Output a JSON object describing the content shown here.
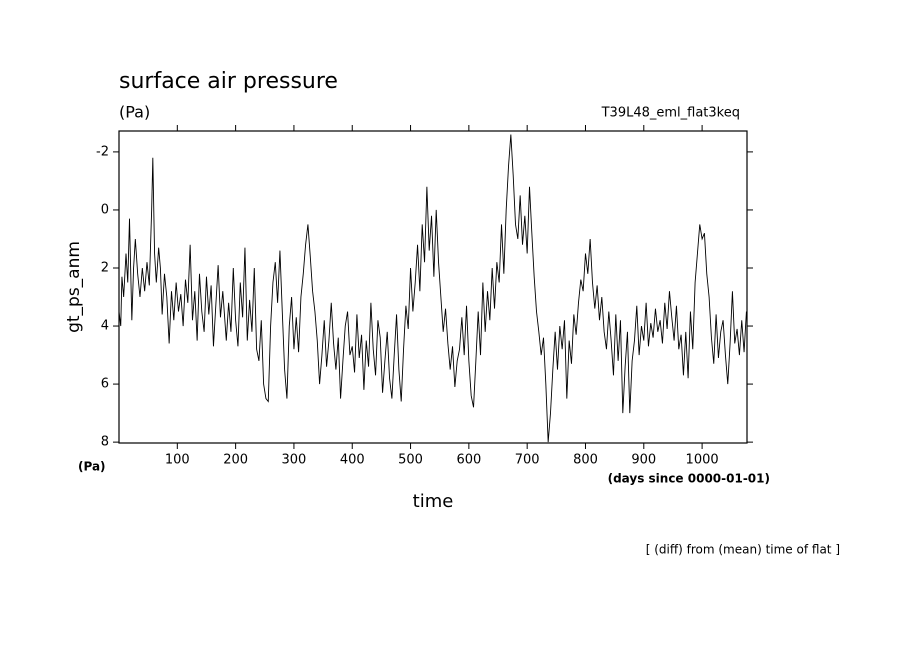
{
  "chart_data": {
    "type": "line",
    "title": "surface air pressure",
    "subtitle": "(Pa)",
    "annotation": "T39L48_eml_flat3keq",
    "y_label": "gt_ps_anm",
    "y_units": "(Pa)",
    "x_label": "time",
    "x_units": "(days since 0000-01-01)",
    "footer": "[ (diff) from (mean) time of flat ]",
    "xlim": [
      0,
      1077
    ],
    "ylim": [
      8.03,
      -2.72
    ],
    "xticks": [
      100,
      200,
      300,
      400,
      500,
      600,
      700,
      800,
      900,
      1000
    ],
    "yticks": [
      -2,
      0,
      2,
      4,
      6,
      8
    ],
    "color": "#000000",
    "x": [
      0,
      3,
      5,
      8,
      12,
      15,
      18,
      22,
      25,
      28,
      32,
      36,
      40,
      44,
      48,
      52,
      56,
      58,
      61,
      64,
      68,
      71,
      74,
      78,
      82,
      86,
      90,
      94,
      98,
      102,
      106,
      110,
      114,
      118,
      122,
      126,
      130,
      134,
      138,
      142,
      146,
      150,
      154,
      158,
      162,
      166,
      170,
      174,
      178,
      184,
      188,
      192,
      196,
      200,
      204,
      208,
      212,
      216,
      220,
      224,
      228,
      232,
      236,
      240,
      244,
      248,
      252,
      256,
      260,
      264,
      268,
      272,
      276,
      280,
      284,
      288,
      292,
      296,
      300,
      304,
      308,
      312,
      316,
      320,
      324,
      328,
      332,
      336,
      340,
      344,
      348,
      352,
      356,
      360,
      364,
      368,
      372,
      376,
      380,
      384,
      388,
      392,
      396,
      400,
      404,
      408,
      412,
      416,
      420,
      424,
      428,
      432,
      436,
      440,
      444,
      448,
      452,
      456,
      460,
      464,
      468,
      472,
      476,
      480,
      484,
      488,
      492,
      496,
      500,
      504,
      508,
      512,
      516,
      520,
      524,
      528,
      532,
      536,
      540,
      544,
      548,
      552,
      556,
      560,
      564,
      568,
      572,
      576,
      580,
      584,
      588,
      592,
      596,
      600,
      604,
      608,
      612,
      616,
      620,
      624,
      628,
      632,
      636,
      640,
      644,
      648,
      652,
      656,
      660,
      664,
      668,
      672,
      676,
      680,
      684,
      688,
      692,
      696,
      700,
      704,
      708,
      712,
      716,
      720,
      724,
      728,
      732,
      736,
      740,
      744,
      748,
      752,
      756,
      760,
      764,
      768,
      772,
      776,
      780,
      784,
      788,
      792,
      796,
      800,
      804,
      808,
      812,
      816,
      820,
      824,
      828,
      832,
      836,
      840,
      844,
      848,
      852,
      856,
      860,
      864,
      868,
      872,
      876,
      880,
      884,
      888,
      892,
      896,
      900,
      904,
      908,
      912,
      916,
      920,
      924,
      928,
      932,
      936,
      940,
      944,
      948,
      952,
      956,
      960,
      964,
      968,
      972,
      976,
      980,
      984,
      988,
      992,
      996,
      1000,
      1004,
      1008,
      1012,
      1016,
      1020,
      1024,
      1028,
      1032,
      1036,
      1040,
      1044,
      1048,
      1052,
      1056,
      1060,
      1064,
      1068,
      1072,
      1076
    ],
    "values": [
      3.5,
      4,
      2.3,
      3,
      1.5,
      2.5,
      0.3,
      3.8,
      2,
      1,
      2.2,
      3,
      2,
      2.8,
      1.8,
      2.6,
      0,
      -1.8,
      1.5,
      2.5,
      1.3,
      2,
      3.6,
      2.2,
      3,
      4.6,
      2.8,
      3.8,
      2.5,
      3.5,
      2.9,
      4,
      2.4,
      3.2,
      1.2,
      3.8,
      2.8,
      4.5,
      2.2,
      3.5,
      4.2,
      2.3,
      3.6,
      2.6,
      4.7,
      3.3,
      1.9,
      3.7,
      2.8,
      4.5,
      3.2,
      4.2,
      2,
      3.8,
      4.7,
      2.5,
      3.7,
      1.3,
      4.5,
      3.1,
      4.2,
      2,
      4.8,
      5.2,
      3.8,
      6,
      6.5,
      6.6,
      4,
      2.5,
      1.8,
      3.2,
      1.4,
      3.5,
      5.5,
      6.5,
      4,
      3,
      4.8,
      3.7,
      4.9,
      3,
      2.2,
      1.2,
      0.5,
      1.6,
      2.8,
      3.5,
      4.5,
      6,
      5,
      3.8,
      5.4,
      4.5,
      3.2,
      4.6,
      5.5,
      4.4,
      6.5,
      5.2,
      4,
      3.5,
      5,
      4.7,
      5.6,
      3.6,
      5.1,
      4.3,
      6.2,
      4.5,
      5.4,
      3.2,
      4.8,
      5.7,
      3.8,
      4.4,
      6.3,
      5.2,
      4.2,
      5.8,
      6.5,
      5,
      3.6,
      5.5,
      6.6,
      4.8,
      3.3,
      4.1,
      2,
      3.5,
      2.5,
      1.2,
      2.8,
      0.5,
      1.8,
      -0.8,
      1.4,
      0.2,
      2.3,
      0,
      1.8,
      3,
      4.2,
      3.4,
      4.6,
      5.5,
      4.7,
      6.1,
      5.2,
      4.8,
      3.7,
      5,
      3.3,
      5.2,
      6.4,
      6.8,
      5.2,
      3.5,
      5,
      2.5,
      4.2,
      2.8,
      3.8,
      2,
      3.4,
      1.8,
      2.5,
      0.5,
      2.2,
      0,
      -1.5,
      -2.6,
      -1.2,
      0.5,
      1,
      -0.5,
      1.2,
      0.2,
      1.5,
      -0.8,
      0.8,
      2.3,
      3.5,
      4.2,
      5,
      4.4,
      6,
      8,
      7,
      5.5,
      4.2,
      5.5,
      4,
      4.8,
      3.8,
      6.5,
      4.5,
      5.3,
      3.6,
      4.3,
      3.2,
      2.4,
      2.8,
      1.5,
      2.2,
      1,
      2.5,
      3.4,
      2.6,
      3.8,
      3,
      4.2,
      4.8,
      3.5,
      4.5,
      5.7,
      3.6,
      5.2,
      3.8,
      7,
      5.4,
      4.2,
      7,
      5.2,
      4.5,
      3.3,
      5,
      4,
      4.5,
      3.2,
      4.7,
      3.9,
      4.4,
      3.4,
      4.2,
      3.8,
      4.6,
      3.2,
      4.1,
      2.8,
      3.7,
      4.5,
      3.3,
      4.8,
      4.3,
      5.7,
      4.2,
      5.8,
      3.5,
      4.8,
      2.5,
      1.5,
      0.5,
      1,
      0.8,
      2.2,
      3,
      4.4,
      5.3,
      3.6,
      5.1,
      4.2,
      3.8,
      5,
      6,
      4.6,
      2.8,
      4.6,
      4.1,
      5,
      3.8,
      4.9,
      3.5
    ]
  }
}
